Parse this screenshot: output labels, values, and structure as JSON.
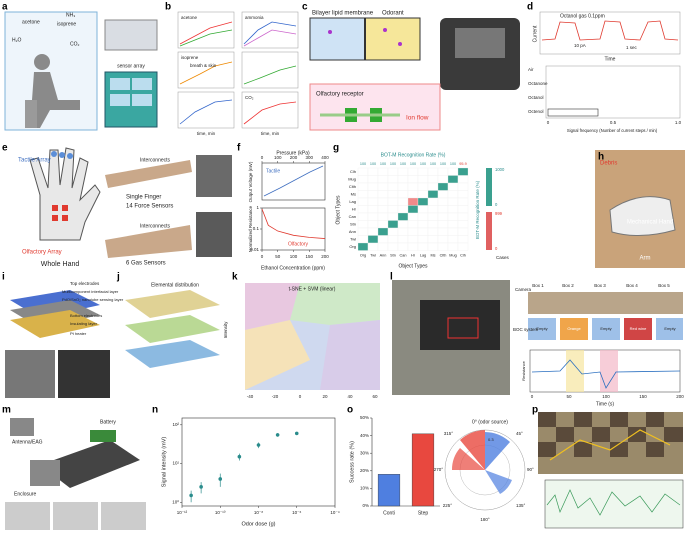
{
  "panels": [
    {
      "label": "a",
      "texts": [
        "acetone",
        "NH₃",
        "isoprene",
        "H₂O",
        "CO₂",
        "sensor array"
      ]
    },
    {
      "label": "b",
      "texts": [
        "acetone",
        "ammonia",
        "isoprene",
        "breath & skin",
        "CO₂",
        "time, min",
        "time, min"
      ]
    },
    {
      "label": "c",
      "texts": [
        "Bilayer lipid membrane",
        "Odorant",
        "Olfactory receptor",
        "Ion flow"
      ]
    },
    {
      "label": "d",
      "texts": [
        "Octanol gas 0.1ppm",
        "Current",
        "10 pA",
        "1 sec",
        "Time",
        "Air",
        "Octanone",
        "Octanol",
        "Octenol",
        "Signal frequency (Number of current steps / min)",
        "0",
        "0.5",
        "1.0"
      ]
    },
    {
      "label": "e",
      "texts": [
        "Tactile Array",
        "Olfactory Array",
        "Whole Hand",
        "Interconnects",
        "Single Finger",
        "14 Force Sensors",
        "Interconnects",
        "6 Gas Sensors"
      ]
    },
    {
      "label": "f",
      "texts": [
        "Pressure (kPa)",
        "Tactile",
        "Output Voltage (mV)",
        "Normalized Resistance",
        "Olfactory",
        "Ethanol Concentration (ppm)"
      ],
      "chart": {
        "type": "line",
        "x": [
          0,
          20,
          50,
          100,
          150,
          200
        ],
        "values": [
          0.9,
          0.15,
          0.08,
          0.05,
          0.04,
          0.035
        ],
        "color": "#e03a2f",
        "xlim": [
          0,
          200
        ],
        "xticks": [
          0,
          50,
          100,
          150,
          200
        ],
        "x2lim": [
          0,
          400
        ],
        "x2ticks": [
          0,
          100,
          200,
          300,
          400
        ],
        "ylim": [
          0.01,
          1
        ],
        "yticks": [
          1,
          0.1,
          0.01
        ],
        "log_y": true
      }
    },
    {
      "label": "g",
      "texts": [
        "BOT-M Recognition Rate (%)",
        "Object Types",
        "Object Types",
        "BOT-M Recognition Rate (%)",
        "Cases"
      ],
      "rows": [
        "Clh",
        "Mug",
        "Clth",
        "Ms",
        "Lag",
        "Hr",
        "Can",
        "Stn",
        "Ann",
        "Twl",
        "Org"
      ],
      "columns": [
        "Org",
        "Twl",
        "Ann",
        "Stn",
        "Can",
        "Hr",
        "Lag",
        "Ms",
        "Clth",
        "Mug",
        "Clh"
      ],
      "rates": [
        100,
        100,
        100,
        100,
        100,
        100,
        100,
        100,
        100,
        100,
        95.9
      ],
      "colorbar": [
        1000,
        0,
        999,
        0
      ]
    },
    {
      "label": "h",
      "texts": [
        "Debris",
        "Mechanical Hand",
        "Arm"
      ]
    },
    {
      "label": "i",
      "texts": [
        "Top electrodes",
        "Multicomponent interfacial layer",
        "PdO/SnO₂ nanotube sensing layer",
        "Bottom electrodes",
        "Insulating layer",
        "Pt heater"
      ]
    },
    {
      "label": "j",
      "texts": [
        "Elemental distribution",
        "Intensity"
      ]
    },
    {
      "label": "k",
      "texts": [
        "t-SNE + SVM (linear)"
      ],
      "xticks": [
        -40,
        -20,
        0,
        20,
        40,
        60
      ]
    },
    {
      "label": "l",
      "texts": [
        "Camera",
        "BOC system",
        "Box 1",
        "Box 2",
        "Box 3",
        "Box 4",
        "Box 5",
        "Empty",
        "Orange",
        "Empty",
        "Red wine",
        "Empty",
        "Time (s)",
        "Resistance"
      ],
      "xticks": [
        0,
        50,
        100,
        150,
        200
      ]
    },
    {
      "label": "m",
      "texts": [
        "Antenna/EAG",
        "Battery",
        "Enclosure"
      ]
    },
    {
      "label": "n",
      "chart": {
        "type": "scatter",
        "x_label": "Odor dose (g)",
        "y_label": "Signal intensity (mV)",
        "x": [
          3e-12,
          1e-11,
          1e-10,
          1e-09,
          1e-08,
          1e-07,
          1e-06
        ],
        "values": [
          1.5,
          2.5,
          4,
          15,
          30,
          55,
          60
        ],
        "errors": [
          0.5,
          0.8,
          1.5,
          3,
          5,
          6,
          5
        ],
        "color": "#2a8c8c",
        "log_x": true,
        "log_y": true,
        "xlim": [
          1e-12,
          0.0001
        ],
        "xticks": [
          {
            "value": 1e-12,
            "label": "10⁻¹²"
          },
          {
            "value": 1e-10,
            "label": "10⁻¹⁰"
          },
          {
            "value": 1e-08,
            "label": "10⁻⁸"
          },
          {
            "value": 1e-06,
            "label": "10⁻⁶"
          },
          {
            "value": 0.0001,
            "label": "10⁻⁴"
          }
        ],
        "ylim": [
          0.8,
          150
        ],
        "yticks": [
          {
            "value": 1,
            "label": "10⁰"
          },
          {
            "value": 10,
            "label": "10¹"
          },
          {
            "value": 100,
            "label": "10²"
          }
        ]
      }
    },
    {
      "label": "o",
      "texts": [
        "0° (odor source)",
        "45°",
        "90°",
        "135°",
        "180°",
        "225°",
        "270°",
        "315°",
        "0.3"
      ],
      "chart": {
        "type": "bar",
        "y_label": "Success rate (%)",
        "categories": [
          "Conti",
          "Step"
        ],
        "values": [
          18,
          41
        ],
        "colors": [
          "#4f7fe0",
          "#e8483f"
        ],
        "ylim": [
          0,
          50
        ],
        "yticks": [
          {
            "value": 0,
            "label": "0%"
          },
          {
            "value": 10,
            "label": "10%"
          },
          {
            "value": 20,
            "label": "20%"
          },
          {
            "value": 30,
            "label": "30%"
          },
          {
            "value": 40,
            "label": "40%"
          },
          {
            "value": 50,
            "label": "50%"
          }
        ]
      }
    },
    {
      "label": "p"
    }
  ]
}
